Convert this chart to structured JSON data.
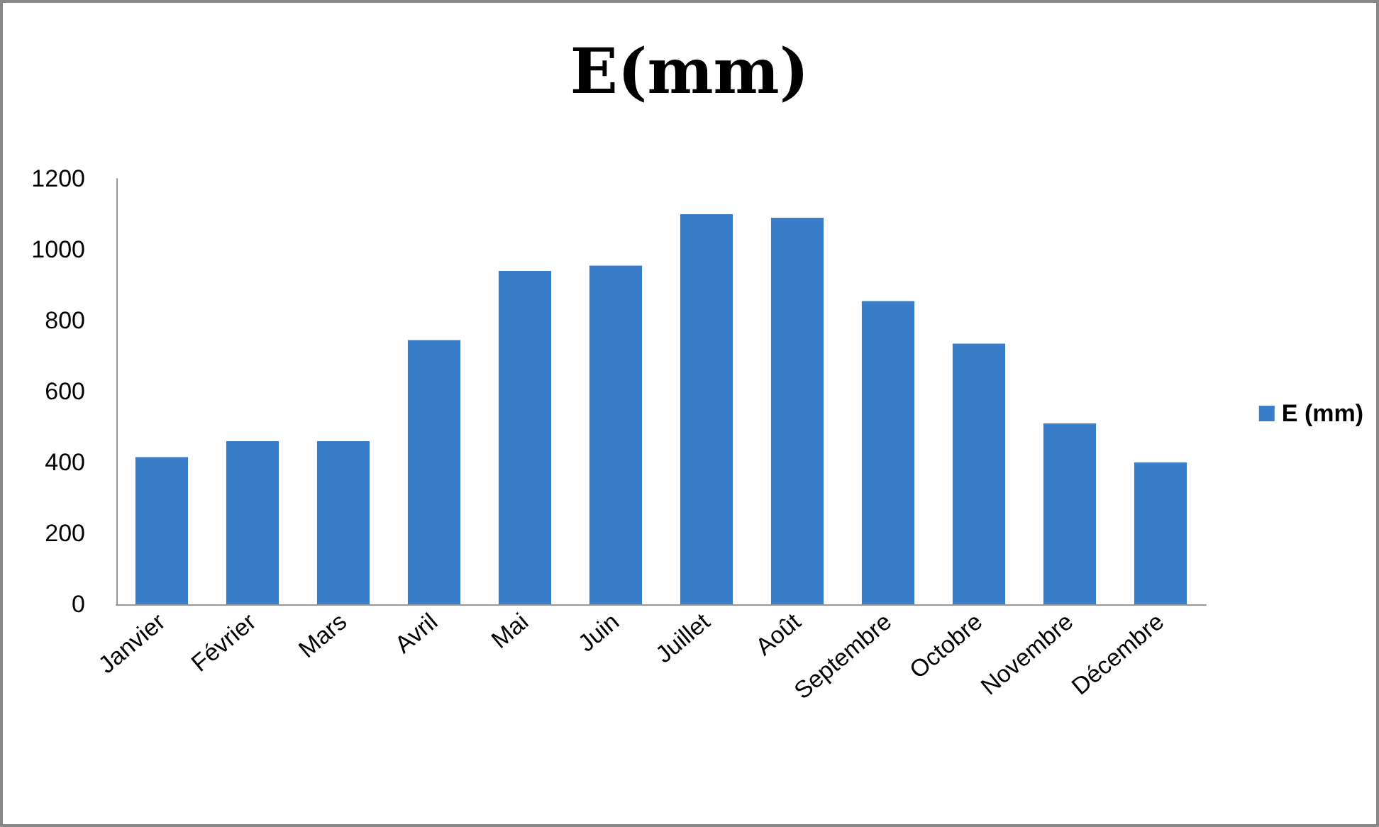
{
  "chart_data": {
    "type": "bar",
    "title": "E(mm)",
    "categories": [
      "Janvier",
      "Février",
      "Mars",
      "Avril",
      "Mai",
      "Juin",
      "Juillet",
      "Août",
      "Septembre",
      "Octobre",
      "Novembre",
      "Décembre"
    ],
    "series": [
      {
        "name": "E (mm)",
        "color": "#3a7dc9",
        "values": [
          415,
          460,
          460,
          745,
          940,
          955,
          1100,
          1090,
          855,
          735,
          510,
          400
        ]
      }
    ],
    "ylim": [
      0,
      1200
    ],
    "yticks": [
      0,
      200,
      400,
      600,
      800,
      1000,
      1200
    ],
    "grid": false,
    "legend": "right"
  }
}
